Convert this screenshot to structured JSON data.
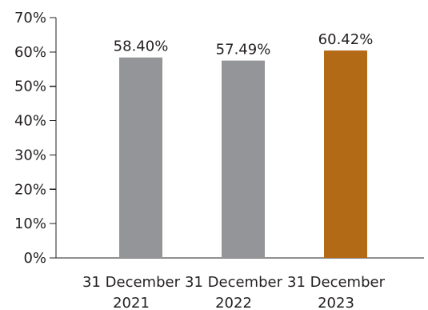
{
  "chart_data": {
    "type": "bar",
    "title": "",
    "xlabel": "",
    "ylabel": "",
    "categories": [
      [
        "31 December",
        "2021"
      ],
      [
        "31 December",
        "2022"
      ],
      [
        "31 December",
        "2023"
      ]
    ],
    "values": [
      58.4,
      57.49,
      60.42
    ],
    "data_labels": [
      "58.40%",
      "57.49%",
      "60.42%"
    ],
    "ylim": [
      0,
      70
    ],
    "yticks": [
      0,
      10,
      20,
      30,
      40,
      50,
      60,
      70
    ],
    "ytick_labels": [
      "0%",
      "10%",
      "20%",
      "30%",
      "40%",
      "50%",
      "60%",
      "70%"
    ],
    "grid": false,
    "bar_colors": [
      "#939598",
      "#939598",
      "#b36a17"
    ]
  }
}
